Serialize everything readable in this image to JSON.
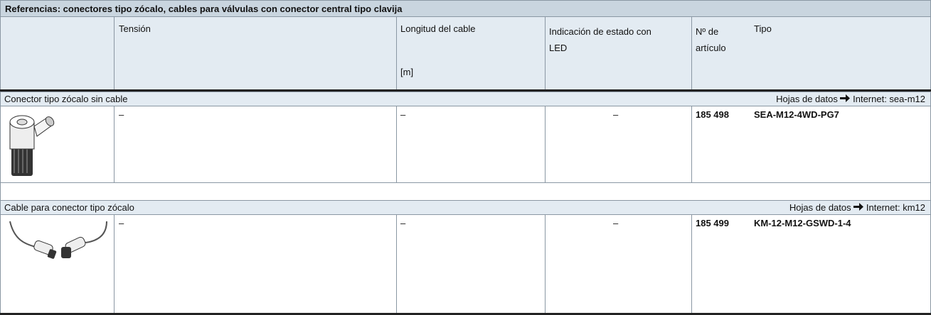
{
  "title": "Referencias: conectores tipo zócalo, cables para válvulas con conector central tipo clavija",
  "header": {
    "tension": "Tensión",
    "longitud": "Longitud del cable",
    "longitud_unit": "[m]",
    "indicacion": "Indicación de estado con LED",
    "articulo": "Nº de artículo",
    "tipo": "Tipo"
  },
  "sections": [
    {
      "label": "Conector tipo zócalo sin cable",
      "datasheet": "Hojas de datos",
      "link": "Internet: sea-m12",
      "row": {
        "tension": "–",
        "longitud": "–",
        "indicacion": "–",
        "articulo": "185 498",
        "tipo": "SEA-M12-4WD-PG7"
      }
    },
    {
      "label": "Cable para conector tipo zócalo",
      "datasheet": "Hojas de datos",
      "link": "Internet: km12",
      "row": {
        "tension": "–",
        "longitud": "–",
        "indicacion": "–",
        "articulo": "185 499",
        "tipo": "KM-12-M12-GSWD-1-4"
      }
    }
  ]
}
